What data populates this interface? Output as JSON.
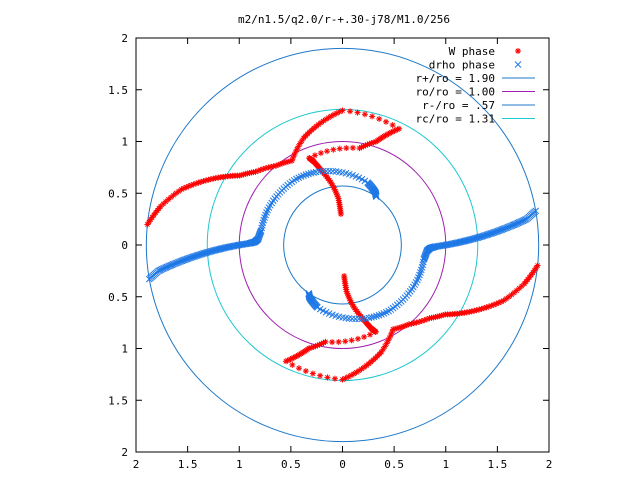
{
  "chart_data": {
    "type": "scatter",
    "title": "m2/n1.5/q2.0/r-+.30-j78/M1.0/256",
    "xlabel": "",
    "ylabel": "",
    "xlim": [
      -2,
      2
    ],
    "ylim": [
      -2,
      2
    ],
    "x_ticks": [
      "2",
      "1.5",
      "1",
      "0.5",
      "0",
      "0.5",
      "1",
      "1.5",
      "2"
    ],
    "x_tick_values": [
      -2,
      -1.5,
      -1,
      -0.5,
      0,
      0.5,
      1,
      1.5,
      2
    ],
    "y_ticks": [
      "2",
      "1.5",
      "1",
      "0.5",
      "0",
      "0.5",
      "1",
      "1.5",
      "2"
    ],
    "y_tick_values": [
      2,
      1.5,
      1,
      0.5,
      0,
      -0.5,
      -1,
      -1.5,
      -2
    ],
    "grid": false,
    "legend_position": "top-right",
    "series": [
      {
        "name": "W phase",
        "kind": "points",
        "marker": "plus-star",
        "color": "#ff0000",
        "arms": [
          {
            "r": [
              0.3,
              0.45,
              0.6,
              0.75,
              0.85,
              0.9,
              0.95,
              1.05,
              1.15,
              1.25,
              1.3,
              1.2,
              1.1,
              0.95,
              1.0,
              1.1,
              1.2,
              1.35,
              1.5,
              1.65,
              1.8,
              1.9
            ],
            "theta": [
              93,
              95,
              100,
              106,
              109,
              111,
              80,
              72,
              68,
              64,
              90,
              100,
              110,
              121,
              130,
              140,
              146,
              151,
              156,
              161,
              168,
              174
            ]
          },
          {
            "r": [
              0.3,
              0.45,
              0.6,
              0.75,
              0.85,
              0.9,
              0.95,
              1.05,
              1.15,
              1.25,
              1.3,
              1.2,
              1.1,
              0.95,
              1.0,
              1.1,
              1.2,
              1.35,
              1.5,
              1.65,
              1.8,
              1.9
            ],
            "theta": [
              273,
              275,
              280,
              286,
              289,
              291,
              260,
              252,
              248,
              244,
              270,
              280,
              290,
              301,
              310,
              320,
              326,
              331,
              336,
              341,
              348,
              354
            ]
          }
        ]
      },
      {
        "name": "drho phase",
        "kind": "points",
        "marker": "x-square",
        "color": "#1e78e6",
        "arms": [
          {
            "r": [
              0.57,
              0.6,
              0.62,
              0.65,
              0.7,
              0.75,
              0.78,
              0.79,
              0.8,
              0.8,
              0.82,
              0.85,
              0.9,
              1.0,
              1.1,
              1.2,
              1.3,
              1.4,
              1.5,
              1.6,
              1.7,
              1.8,
              1.9
            ],
            "theta": [
              55,
              58,
              62,
              68,
              90,
              110,
              125,
              140,
              155,
              170,
              176,
              178,
              179,
              180,
              181,
              182,
              183,
              184,
              185,
              186,
              187,
              188,
              190
            ]
          },
          {
            "r": [
              0.57,
              0.6,
              0.62,
              0.65,
              0.7,
              0.75,
              0.78,
              0.79,
              0.8,
              0.8,
              0.82,
              0.85,
              0.9,
              1.0,
              1.1,
              1.2,
              1.3,
              1.4,
              1.5,
              1.6,
              1.7,
              1.8,
              1.9
            ],
            "theta": [
              235,
              238,
              242,
              248,
              270,
              290,
              305,
              320,
              335,
              350,
              356,
              358,
              359,
              0,
              1,
              2,
              3,
              4,
              5,
              6,
              7,
              8,
              10
            ]
          }
        ]
      },
      {
        "name": "r+/ro = 1.90",
        "kind": "circle",
        "r": 1.9,
        "color": "#1e78c8"
      },
      {
        "name": "ro/ro = 1.00",
        "kind": "circle",
        "r": 1.0,
        "color": "#a020b0"
      },
      {
        "name": "r-/ro = .57",
        "kind": "circle",
        "r": 0.57,
        "color": "#1e78c8"
      },
      {
        "name": "rc/ro = 1.31",
        "kind": "circle",
        "r": 1.31,
        "color": "#20c8d0"
      }
    ]
  }
}
